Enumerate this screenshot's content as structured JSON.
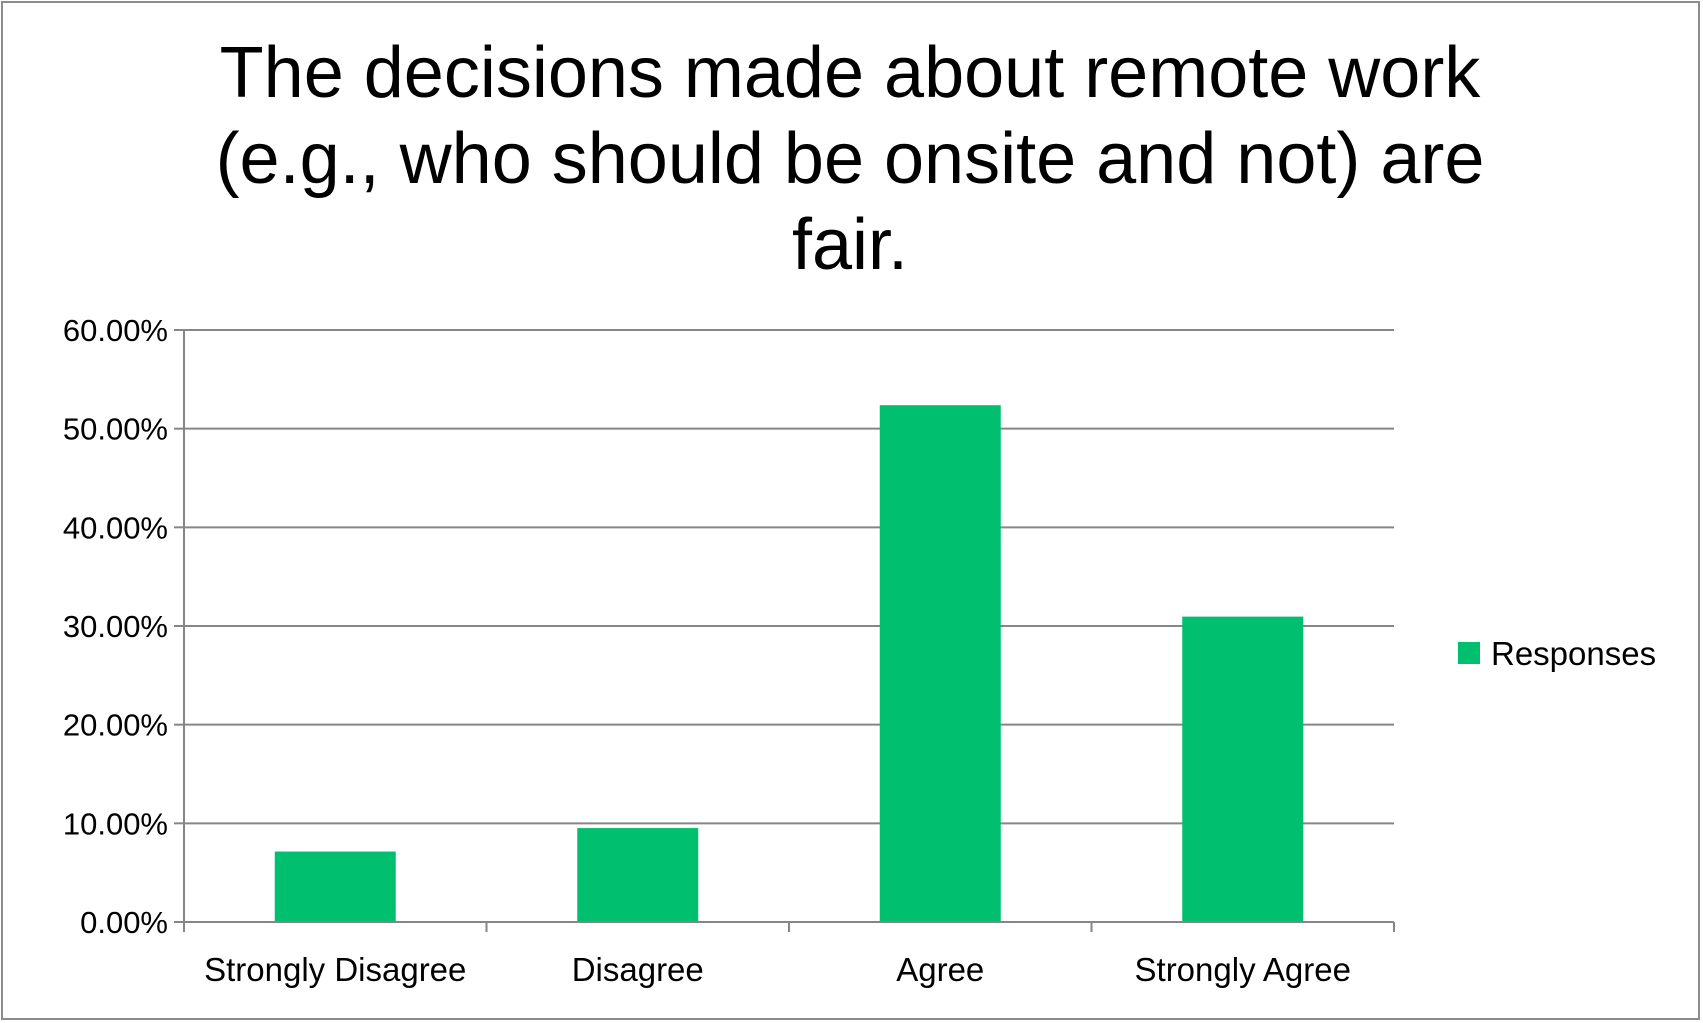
{
  "chart_data": {
    "type": "bar",
    "title": "The decisions made about remote work (e.g., who should be onsite and not) are fair.",
    "categories": [
      "Strongly Disagree",
      "Disagree",
      "Agree",
      "Strongly Agree"
    ],
    "series": [
      {
        "name": "Responses",
        "values": [
          7.14,
          9.52,
          52.38,
          30.95
        ],
        "color": "#00bf6f"
      }
    ],
    "ylim": [
      0,
      60
    ],
    "yticks": [
      0,
      10,
      20,
      30,
      40,
      50,
      60
    ],
    "ytick_labels": [
      "0.00%",
      "10.00%",
      "20.00%",
      "30.00%",
      "40.00%",
      "50.00%",
      "60.00%"
    ],
    "grid": true,
    "legend_position": "right"
  }
}
